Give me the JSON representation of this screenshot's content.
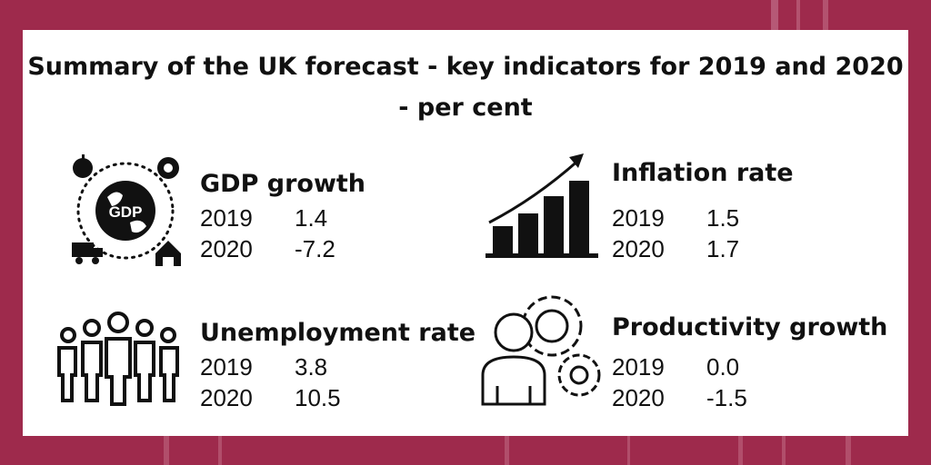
{
  "title": "Summary of the UK forecast - key indicators for 2019 and 2020 - per cent",
  "indicators": [
    {
      "name": "GDP growth",
      "icon": "gdp-globe-icon",
      "rows": [
        {
          "year": "2019",
          "value": "1.4"
        },
        {
          "year": "2020",
          "value": "-7.2"
        }
      ]
    },
    {
      "name": "Inflation rate",
      "icon": "rising-bar-chart-icon",
      "rows": [
        {
          "year": "2019",
          "value": "1.5"
        },
        {
          "year": "2020",
          "value": "1.7"
        }
      ]
    },
    {
      "name": "Unemployment rate",
      "icon": "people-group-icon",
      "rows": [
        {
          "year": "2019",
          "value": "3.8"
        },
        {
          "year": "2020",
          "value": "10.5"
        }
      ]
    },
    {
      "name": "Productivity growth",
      "icon": "person-gears-icon",
      "rows": [
        {
          "year": "2019",
          "value": "0.0"
        },
        {
          "year": "2020",
          "value": "-1.5"
        }
      ]
    }
  ],
  "colors": {
    "background": "#9e2a4c",
    "card": "#ffffff",
    "text": "#111111"
  }
}
